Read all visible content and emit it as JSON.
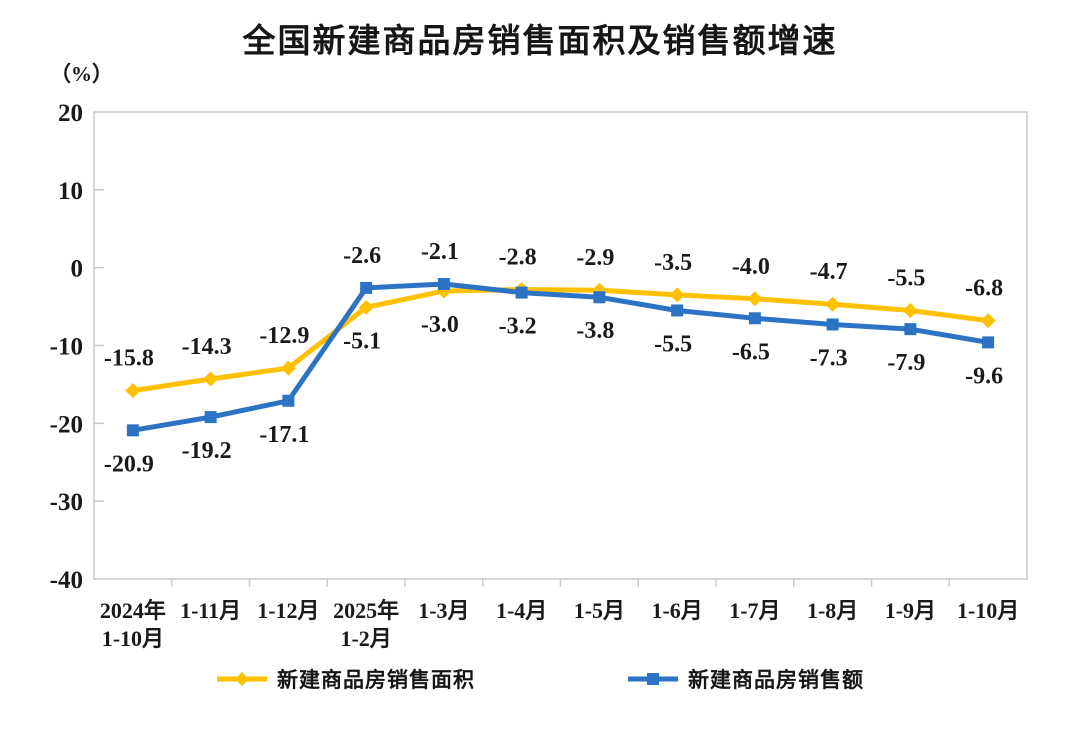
{
  "chart_data": {
    "type": "line",
    "title": "全国新建商品房销售面积及销售额增速",
    "ylabel": "（%）",
    "ylim": [
      -40,
      20
    ],
    "yticks": [
      20,
      10,
      0,
      -10,
      -20,
      -30,
      -40
    ],
    "grid": false,
    "legend_position": "bottom",
    "categories": [
      [
        "2024年",
        "1-10月"
      ],
      [
        "1-11月"
      ],
      [
        "1-12月"
      ],
      [
        "2025年",
        "1-2月"
      ],
      [
        "1-3月"
      ],
      [
        "1-4月"
      ],
      [
        "1-5月"
      ],
      [
        "1-6月"
      ],
      [
        "1-7月"
      ],
      [
        "1-8月"
      ],
      [
        "1-9月"
      ],
      [
        "1-10月"
      ]
    ],
    "series": [
      {
        "name": "新建商品房销售面积",
        "color": "#FFC000",
        "marker": "diamond",
        "values": [
          -15.8,
          -14.3,
          -12.9,
          -5.1,
          -3.0,
          -2.8,
          -2.9,
          -3.5,
          -4.0,
          -4.7,
          -5.5,
          -6.8
        ],
        "labels": [
          "-15.8",
          "-14.3",
          "-12.9",
          "-5.1",
          "-3.0",
          "-2.8",
          "-2.9",
          "-3.5",
          "-4.0",
          "-4.7",
          "-5.5",
          "-6.8"
        ],
        "label_pos": [
          "above",
          "above",
          "above",
          "below",
          "below",
          "above",
          "above",
          "above",
          "above",
          "above",
          "above",
          "above"
        ]
      },
      {
        "name": "新建商品房销售额",
        "color": "#2D73C4",
        "marker": "square",
        "values": [
          -20.9,
          -19.2,
          -17.1,
          -2.6,
          -2.1,
          -3.2,
          -3.8,
          -5.5,
          -6.5,
          -7.3,
          -7.9,
          -9.6
        ],
        "labels": [
          "-20.9",
          "-19.2",
          "-17.1",
          "-2.6",
          "-2.1",
          "-3.2",
          "-3.8",
          "-5.5",
          "-6.5",
          "-7.3",
          "-7.9",
          "-9.6"
        ],
        "label_pos": [
          "below",
          "below",
          "below",
          "above",
          "above",
          "below",
          "below",
          "below",
          "below",
          "below",
          "below",
          "below"
        ]
      }
    ],
    "axis_color": "#c8c8c8",
    "text_color": "#1a1a1a"
  }
}
